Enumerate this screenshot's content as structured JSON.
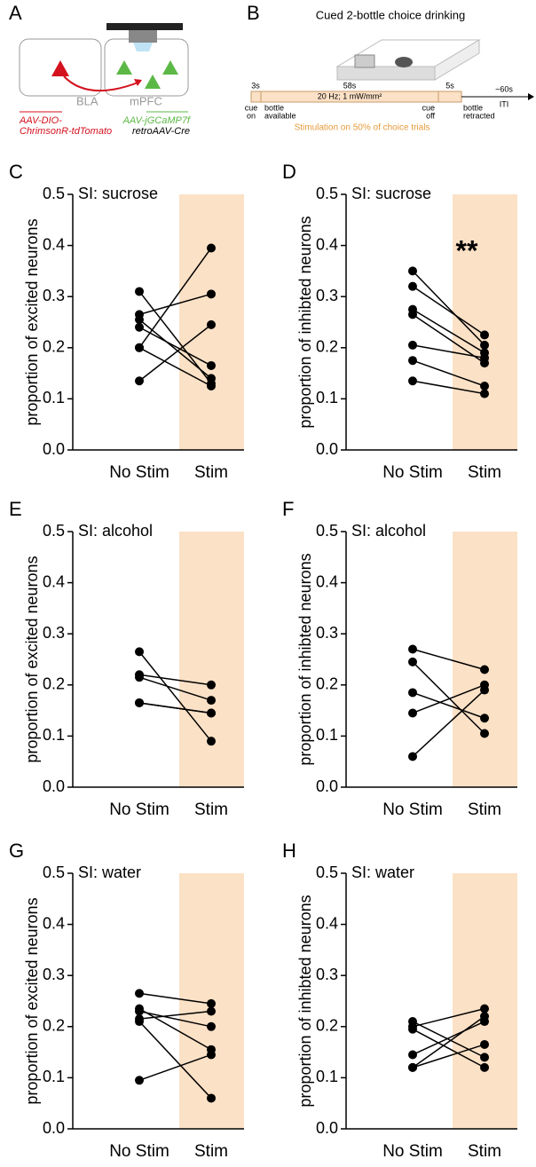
{
  "panel_a": {
    "letter": "A",
    "bla": "BLA",
    "mpfc": "mPFC",
    "virus_red_1": "AAV-DIO-",
    "virus_red_2": "ChrimsonR-tdTomato",
    "virus_green": "AAV-jGCaMP7f",
    "virus_black": "retroAAV-Cre"
  },
  "panel_b": {
    "letter": "B",
    "title": "Cued 2-bottle choice drinking",
    "t1": "3s",
    "t2": "58s",
    "t3": "5s",
    "t4": "~60s",
    "stim": "20 Hz; 1 mW/mm²",
    "cue_on_1": "cue",
    "cue_on_2": "on",
    "avail_1": "bottle",
    "avail_2": "available",
    "cue_off_1": "cue",
    "cue_off_2": "off",
    "retr_1": "bottle",
    "retr_2": "retracted",
    "iti": "ITI",
    "note": "Stimulation on 50% of choice trials"
  },
  "chart_data": [
    {
      "type": "paired",
      "panel": "C",
      "title": "SI: sucrose",
      "ylabel": "proportion of excited neurons",
      "categories": [
        "No Stim",
        "Stim"
      ],
      "stim_color": "#fbe1c6",
      "color": "#000000",
      "ylim": [
        0,
        0.5
      ],
      "yticks": [
        {
          "value": 0,
          "label": "0.0"
        },
        0.1,
        0.2,
        0.3,
        0.4,
        0.5
      ],
      "series": [
        {
          "values": [
            0.135,
            0.245
          ]
        },
        {
          "values": [
            0.2,
            0.395
          ]
        },
        {
          "values": [
            0.2,
            0.125
          ]
        },
        {
          "values": [
            0.24,
            0.165
          ]
        },
        {
          "values": [
            0.255,
            0.14
          ]
        },
        {
          "values": [
            0.265,
            0.305
          ]
        },
        {
          "values": [
            0.31,
            0.13
          ]
        }
      ]
    },
    {
      "type": "paired",
      "panel": "D",
      "title": "SI: sucrose",
      "ylabel": "proportion of inhibted neurons",
      "categories": [
        "No Stim",
        "Stim"
      ],
      "stim_color": "#fbe1c6",
      "color": "#000000",
      "annotation": "**",
      "ylim": [
        0,
        0.5
      ],
      "yticks": [
        {
          "value": 0,
          "label": "0.0"
        },
        0.1,
        0.2,
        0.3,
        0.4,
        0.5
      ],
      "series": [
        {
          "values": [
            0.35,
            0.205
          ]
        },
        {
          "values": [
            0.32,
            0.225
          ]
        },
        {
          "values": [
            0.275,
            0.19
          ]
        },
        {
          "values": [
            0.265,
            0.17
          ]
        },
        {
          "values": [
            0.205,
            0.18
          ]
        },
        {
          "values": [
            0.175,
            0.125
          ]
        },
        {
          "values": [
            0.135,
            0.11
          ]
        }
      ]
    },
    {
      "type": "paired",
      "panel": "E",
      "title": "SI: alcohol",
      "ylabel": "proportion of excited neurons",
      "categories": [
        "No Stim",
        "Stim"
      ],
      "stim_color": "#fbe1c6",
      "color": "#000000",
      "ylim": [
        0,
        0.5
      ],
      "yticks": [
        {
          "value": 0,
          "label": "0.0"
        },
        0.1,
        0.2,
        0.3,
        0.4,
        0.5
      ],
      "series": [
        {
          "values": [
            0.265,
            0.09
          ]
        },
        {
          "values": [
            0.22,
            0.2
          ]
        },
        {
          "values": [
            0.215,
            0.17
          ]
        },
        {
          "values": [
            0.165,
            0.145
          ]
        },
        {
          "values": [
            0.165,
            0.145
          ]
        }
      ]
    },
    {
      "type": "paired",
      "panel": "F",
      "title": "SI: alcohol",
      "ylabel": "proportion of inhibted neurons",
      "categories": [
        "No Stim",
        "Stim"
      ],
      "stim_color": "#fbe1c6",
      "color": "#000000",
      "ylim": [
        0,
        0.5
      ],
      "yticks": [
        {
          "value": 0,
          "label": "0.0"
        },
        0.1,
        0.2,
        0.3,
        0.4,
        0.5
      ],
      "series": [
        {
          "values": [
            0.27,
            0.23
          ]
        },
        {
          "values": [
            0.245,
            0.105
          ]
        },
        {
          "values": [
            0.185,
            0.135
          ]
        },
        {
          "values": [
            0.145,
            0.2
          ]
        },
        {
          "values": [
            0.06,
            0.19
          ]
        }
      ]
    },
    {
      "type": "paired",
      "panel": "G",
      "title": "SI: water",
      "ylabel": "proportion of excited neurons",
      "categories": [
        "No Stim",
        "Stim"
      ],
      "stim_color": "#fbe1c6",
      "color": "#000000",
      "ylim": [
        0,
        0.5
      ],
      "yticks": [
        {
          "value": 0,
          "label": "0.0"
        },
        0.1,
        0.2,
        0.3,
        0.4,
        0.5
      ],
      "series": [
        {
          "values": [
            0.265,
            0.245
          ]
        },
        {
          "values": [
            0.235,
            0.155
          ]
        },
        {
          "values": [
            0.23,
            0.2
          ]
        },
        {
          "values": [
            0.215,
            0.23
          ]
        },
        {
          "values": [
            0.21,
            0.06
          ]
        },
        {
          "values": [
            0.095,
            0.145
          ]
        }
      ]
    },
    {
      "type": "paired",
      "panel": "H",
      "title": "SI: water",
      "ylabel": "proportion of inhibted neurons",
      "categories": [
        "No Stim",
        "Stim"
      ],
      "stim_color": "#fbe1c6",
      "color": "#000000",
      "ylim": [
        0,
        0.5
      ],
      "yticks": [
        {
          "value": 0,
          "label": "0.0"
        },
        0.1,
        0.2,
        0.3,
        0.4,
        0.5
      ],
      "series": [
        {
          "values": [
            0.21,
            0.14
          ]
        },
        {
          "values": [
            0.2,
            0.235
          ]
        },
        {
          "values": [
            0.195,
            0.12
          ]
        },
        {
          "values": [
            0.145,
            0.21
          ]
        },
        {
          "values": [
            0.12,
            0.22
          ]
        },
        {
          "values": [
            0.12,
            0.165
          ]
        }
      ]
    }
  ]
}
